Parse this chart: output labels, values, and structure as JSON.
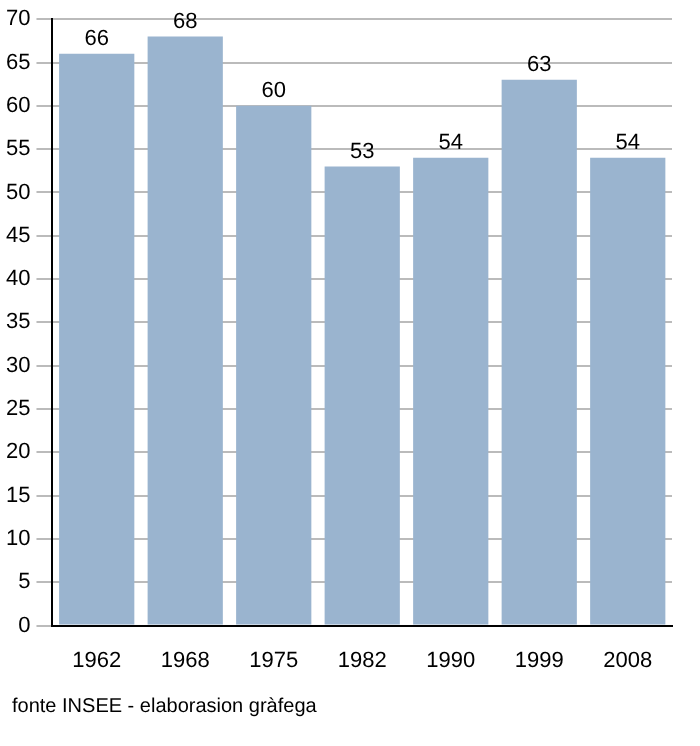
{
  "chart_data": {
    "type": "bar",
    "categories": [
      "1962",
      "1968",
      "1975",
      "1982",
      "1990",
      "1999",
      "2008"
    ],
    "values": [
      66,
      68,
      60,
      53,
      54,
      63,
      54
    ],
    "color": "#9ab4cf",
    "ylim": [
      0,
      70
    ],
    "yticks": [
      0,
      5,
      10,
      15,
      20,
      25,
      30,
      35,
      40,
      45,
      50,
      55,
      60,
      65,
      70
    ],
    "grid": "y",
    "data_labels": true,
    "annotations": [
      "fonte INSEE - elaborasion gràfega"
    ]
  }
}
